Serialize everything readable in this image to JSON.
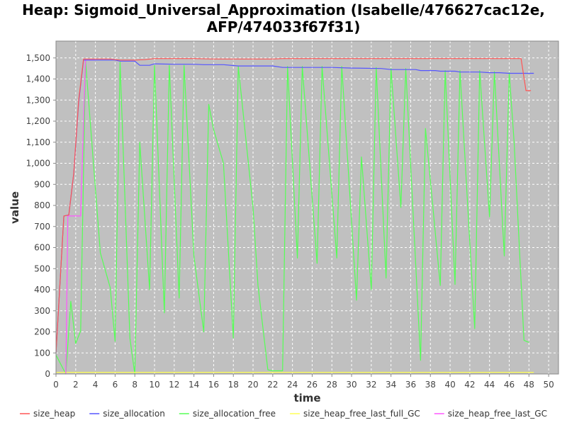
{
  "chart_data": {
    "type": "line",
    "title_line1": "Heap: Sigmoid_Universal_Approximation (Isabelle/476627cac12e,",
    "title_line2": "AFP/474033f67f31)",
    "xlabel": "time",
    "ylabel": "value",
    "xlim": [
      0,
      51
    ],
    "ylim": [
      0,
      1580
    ],
    "x_ticks": [
      0,
      2,
      4,
      6,
      8,
      10,
      12,
      14,
      16,
      18,
      20,
      22,
      24,
      26,
      28,
      30,
      32,
      34,
      36,
      38,
      40,
      42,
      44,
      46,
      48,
      50
    ],
    "y_ticks": [
      0,
      100,
      200,
      300,
      400,
      500,
      600,
      700,
      800,
      900,
      1000,
      1100,
      1200,
      1300,
      1400,
      1500
    ],
    "y_tick_labels": [
      "0",
      "100",
      "200",
      "300",
      "400",
      "500",
      "600",
      "700",
      "800",
      "900",
      "1,000",
      "1,100",
      "1,200",
      "1,300",
      "1,400",
      "1,500"
    ],
    "grid": true,
    "plot_background": "#c0c0c0",
    "legend_position": "bottom",
    "series": [
      {
        "name": "size_heap",
        "color": "#ff5555",
        "points": [
          [
            0,
            100
          ],
          [
            0.8,
            750
          ],
          [
            1.3,
            755
          ],
          [
            1.8,
            950
          ],
          [
            2.3,
            1300
          ],
          [
            2.8,
            1495
          ],
          [
            4,
            1495
          ],
          [
            5.5,
            1495
          ],
          [
            6.5,
            1490
          ],
          [
            8,
            1490
          ],
          [
            9,
            1492
          ],
          [
            10,
            1497
          ],
          [
            12,
            1497
          ],
          [
            14,
            1497
          ],
          [
            16,
            1495
          ],
          [
            18,
            1495
          ],
          [
            20,
            1495
          ],
          [
            22,
            1495
          ],
          [
            23,
            1497
          ],
          [
            26,
            1497
          ],
          [
            30,
            1497
          ],
          [
            33,
            1497
          ],
          [
            36,
            1497
          ],
          [
            40,
            1497
          ],
          [
            42,
            1497
          ],
          [
            44,
            1497
          ],
          [
            46,
            1497
          ],
          [
            47.2,
            1497
          ],
          [
            47.7,
            1345
          ],
          [
            48.2,
            1345
          ]
        ]
      },
      {
        "name": "size_allocation",
        "color": "#5555ff",
        "points": [
          [
            0,
            100
          ],
          [
            0.8,
            750
          ],
          [
            1.3,
            755
          ],
          [
            1.8,
            950
          ],
          [
            2.3,
            1290
          ],
          [
            2.8,
            1490
          ],
          [
            4,
            1490
          ],
          [
            5,
            1490
          ],
          [
            6,
            1490
          ],
          [
            6.5,
            1485
          ],
          [
            8,
            1485
          ],
          [
            8.5,
            1465
          ],
          [
            9.5,
            1465
          ],
          [
            10,
            1472
          ],
          [
            12,
            1470
          ],
          [
            14,
            1470
          ],
          [
            15,
            1468
          ],
          [
            17,
            1468
          ],
          [
            18.5,
            1462
          ],
          [
            20,
            1462
          ],
          [
            22,
            1462
          ],
          [
            23,
            1455
          ],
          [
            28,
            1455
          ],
          [
            30,
            1452
          ],
          [
            33,
            1450
          ],
          [
            34,
            1445
          ],
          [
            36.5,
            1445
          ],
          [
            37,
            1440
          ],
          [
            38.5,
            1440
          ],
          [
            39,
            1437
          ],
          [
            40.5,
            1437
          ],
          [
            41,
            1433
          ],
          [
            43,
            1433
          ],
          [
            44,
            1430
          ],
          [
            45,
            1430
          ],
          [
            46,
            1427
          ],
          [
            48.5,
            1427
          ]
        ]
      },
      {
        "name": "size_allocation_free",
        "color": "#55ff55",
        "points": [
          [
            0,
            90
          ],
          [
            1,
            0
          ],
          [
            1.5,
            345
          ],
          [
            2,
            145
          ],
          [
            2.5,
            205
          ],
          [
            3,
            1485
          ],
          [
            4.5,
            575
          ],
          [
            5.5,
            410
          ],
          [
            6,
            155
          ],
          [
            6.5,
            1480
          ],
          [
            7.5,
            170
          ],
          [
            8,
            0
          ],
          [
            8.5,
            1100
          ],
          [
            9.5,
            400
          ],
          [
            10,
            1465
          ],
          [
            11,
            290
          ],
          [
            11.5,
            1465
          ],
          [
            12.5,
            360
          ],
          [
            13,
            1465
          ],
          [
            14,
            560
          ],
          [
            15,
            200
          ],
          [
            15.5,
            1280
          ],
          [
            16,
            1160
          ],
          [
            17,
            1000
          ],
          [
            18,
            170
          ],
          [
            18.5,
            1460
          ],
          [
            20,
            790
          ],
          [
            20.5,
            420
          ],
          [
            21.5,
            20
          ],
          [
            22,
            15
          ],
          [
            23,
            15
          ],
          [
            23.5,
            1460
          ],
          [
            24.5,
            550
          ],
          [
            25,
            1460
          ],
          [
            26.5,
            525
          ],
          [
            27,
            1460
          ],
          [
            28.5,
            550
          ],
          [
            29,
            1460
          ],
          [
            30.5,
            350
          ],
          [
            31,
            1030
          ],
          [
            32,
            400
          ],
          [
            32.5,
            1455
          ],
          [
            33.5,
            455
          ],
          [
            34,
            1450
          ],
          [
            35,
            790
          ],
          [
            35.5,
            1450
          ],
          [
            37,
            65
          ],
          [
            37.5,
            1165
          ],
          [
            39,
            420
          ],
          [
            39.5,
            1440
          ],
          [
            40.5,
            425
          ],
          [
            41,
            1440
          ],
          [
            42.5,
            215
          ],
          [
            43,
            1440
          ],
          [
            44,
            745
          ],
          [
            44.5,
            1435
          ],
          [
            45.5,
            560
          ],
          [
            46,
            1430
          ],
          [
            46.5,
            1100
          ],
          [
            47.5,
            160
          ],
          [
            48,
            150
          ]
        ]
      },
      {
        "name": "size_heap_free_last_full_GC",
        "color": "#ffff55",
        "points": [
          [
            0,
            8
          ],
          [
            48.5,
            8
          ]
        ]
      },
      {
        "name": "size_heap_free_last_GC",
        "color": "#ff55ff",
        "points": [
          [
            1,
            0
          ],
          [
            1.2,
            750
          ],
          [
            1.8,
            750
          ],
          [
            2.5,
            750
          ],
          [
            3,
            1490
          ],
          [
            4,
            1490
          ]
        ]
      }
    ]
  }
}
